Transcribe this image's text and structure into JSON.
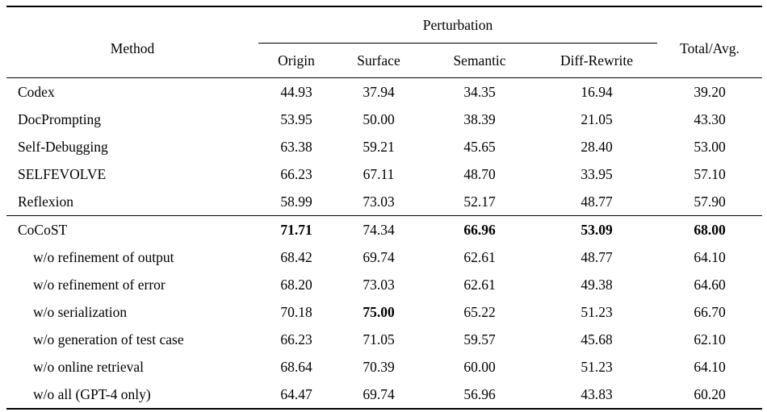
{
  "colors": {
    "background": "#ffffff",
    "text": "#000000",
    "rule": "#000000"
  },
  "table": {
    "header": {
      "method_label": "Method",
      "group_label": "Perturbation",
      "sub_columns": [
        "Origin",
        "Surface",
        "Semantic",
        "Diff-Rewrite"
      ],
      "total_label": "Total/Avg."
    },
    "sections": [
      {
        "name": "baselines",
        "rows": [
          {
            "method": "Codex",
            "indent": false,
            "values": [
              "44.93",
              "37.94",
              "34.35",
              "16.94",
              "39.20"
            ],
            "bold": [
              false,
              false,
              false,
              false,
              false
            ]
          },
          {
            "method": "DocPrompting",
            "indent": false,
            "values": [
              "53.95",
              "50.00",
              "38.39",
              "21.05",
              "43.30"
            ],
            "bold": [
              false,
              false,
              false,
              false,
              false
            ]
          },
          {
            "method": "Self-Debugging",
            "indent": false,
            "values": [
              "63.38",
              "59.21",
              "45.65",
              "28.40",
              "53.00"
            ],
            "bold": [
              false,
              false,
              false,
              false,
              false
            ]
          },
          {
            "method": "SELFEVOLVE",
            "indent": false,
            "values": [
              "66.23",
              "67.11",
              "48.70",
              "33.95",
              "57.10"
            ],
            "bold": [
              false,
              false,
              false,
              false,
              false
            ]
          },
          {
            "method": "Reflexion",
            "indent": false,
            "values": [
              "58.99",
              "73.03",
              "52.17",
              "48.77",
              "57.90"
            ],
            "bold": [
              false,
              false,
              false,
              false,
              false
            ]
          }
        ]
      },
      {
        "name": "cocost-ablations",
        "rows": [
          {
            "method": "CoCoST",
            "indent": false,
            "values": [
              "71.71",
              "74.34",
              "66.96",
              "53.09",
              "68.00"
            ],
            "bold": [
              true,
              false,
              true,
              true,
              true
            ]
          },
          {
            "method": "w/o refinement of output",
            "indent": true,
            "values": [
              "68.42",
              "69.74",
              "62.61",
              "48.77",
              "64.10"
            ],
            "bold": [
              false,
              false,
              false,
              false,
              false
            ]
          },
          {
            "method": "w/o refinement of error",
            "indent": true,
            "values": [
              "68.20",
              "73.03",
              "62.61",
              "49.38",
              "64.60"
            ],
            "bold": [
              false,
              false,
              false,
              false,
              false
            ]
          },
          {
            "method": "w/o serialization",
            "indent": true,
            "values": [
              "70.18",
              "75.00",
              "65.22",
              "51.23",
              "66.70"
            ],
            "bold": [
              false,
              true,
              false,
              false,
              false
            ]
          },
          {
            "method": "w/o generation of test case",
            "indent": true,
            "values": [
              "66.23",
              "71.05",
              "59.57",
              "45.68",
              "62.10"
            ],
            "bold": [
              false,
              false,
              false,
              false,
              false
            ]
          },
          {
            "method": "w/o online retrieval",
            "indent": true,
            "values": [
              "68.64",
              "70.39",
              "60.00",
              "51.23",
              "64.10"
            ],
            "bold": [
              false,
              false,
              false,
              false,
              false
            ]
          },
          {
            "method": "w/o all (GPT-4 only)",
            "indent": true,
            "values": [
              "64.47",
              "69.74",
              "56.96",
              "43.83",
              "60.20"
            ],
            "bold": [
              false,
              false,
              false,
              false,
              false
            ]
          }
        ]
      }
    ]
  }
}
